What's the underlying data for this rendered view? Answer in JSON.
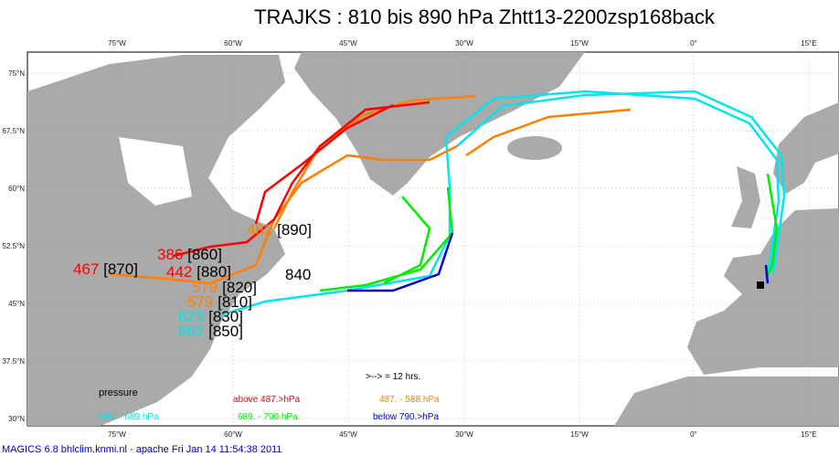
{
  "title": "TRAJKS : 810 bis 890 hPa Zhtt13-2200zsp168back",
  "lon_labels": [
    "75°W",
    "60°W",
    "45°W",
    "30°W",
    "15°W",
    "0°",
    "15°E"
  ],
  "lat_labels": [
    "75°N",
    "67.5°N",
    "60°N",
    "52.5°N",
    "45°N",
    "37.5°N",
    "30°N"
  ],
  "traj_labels": [
    {
      "pressure": "467",
      "level": "[870]"
    },
    {
      "pressure": "386",
      "level": "[860]"
    },
    {
      "pressure": "442",
      "level": "[880]"
    },
    {
      "pressure": "482",
      "level": "[890]"
    },
    {
      "pressure": "579",
      "level": "[820]"
    },
    {
      "level": "840"
    },
    {
      "pressure": "579",
      "level": "[810]"
    },
    {
      "pressure": "623",
      "level": "[830]"
    },
    {
      "pressure": "662",
      "level": "[850]"
    }
  ],
  "legend": {
    "arrow": ">--> = 12 hrs.",
    "heading": "pressure",
    "entries": [
      "above  487.>hPa",
      "487. -    588.hPa",
      "588. -    689.hPa",
      "689. -    790.hPa",
      "below   790.>hPa"
    ]
  },
  "footer": "MAGICS 6.8 bhlclim.knmi.nl - apache Fri Jan 14 11:54:38 2011"
}
